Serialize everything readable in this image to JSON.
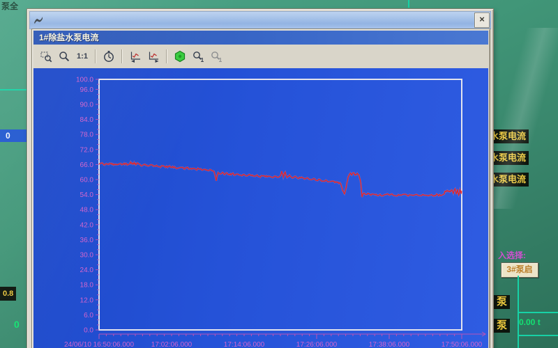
{
  "desktop": {
    "top_left_partial_label": "泵全",
    "left_list_value": "0",
    "left_bottom_value": "0.8",
    "left_bottom_zero": "0",
    "right_panel": {
      "labels": [
        "水泵电流",
        "水泵电流",
        "水泵电流"
      ],
      "prompt": "入选择:",
      "pump_button": "3#泵启",
      "pump_label_1": "泵",
      "pump_label_2": "泵",
      "flow_value": "0.00 t"
    }
  },
  "outer_window": {
    "title": "",
    "close_glyph": "×"
  },
  "trend_window": {
    "title": "1#除盐水泵电流",
    "toolbar": {
      "items": [
        {
          "type": "icon",
          "name": "zoom-area-icon",
          "glyph": "zoomrect"
        },
        {
          "type": "icon",
          "name": "zoom-icon",
          "glyph": "magnifier"
        },
        {
          "type": "text",
          "name": "one-to-one-button",
          "label": "1:1"
        },
        {
          "type": "sep"
        },
        {
          "type": "icon",
          "name": "stopwatch-icon",
          "glyph": "clock"
        },
        {
          "type": "sep"
        },
        {
          "type": "icon",
          "name": "scroll-left-icon",
          "glyph": "chartleft"
        },
        {
          "type": "icon",
          "name": "scroll-right-icon",
          "glyph": "chartright"
        },
        {
          "type": "sep"
        },
        {
          "type": "icon",
          "name": "run-icon",
          "glyph": "greenhex"
        },
        {
          "type": "icon",
          "name": "find-first-icon",
          "glyph": "mag1"
        },
        {
          "type": "icon",
          "name": "find-next-icon",
          "glyph": "mag1",
          "faded": true
        }
      ]
    }
  },
  "chart_data": {
    "type": "line",
    "title": "1#除盐水泵电流",
    "grid": false,
    "legend": false,
    "plot_bg": "#2150d4",
    "border_color": "#e3e4ee",
    "axis_color": "#d263cc",
    "tick_color": "#b853b8",
    "ylim": [
      0,
      100
    ],
    "y_tick_values": [
      0,
      6,
      12,
      18,
      24,
      30,
      36,
      42,
      48,
      54,
      60,
      66,
      72,
      78,
      84,
      90,
      96,
      100
    ],
    "y_tick_labels": [
      "0.0",
      "6.0",
      "12.0",
      "18.0",
      "24.0",
      "30.0",
      "36.0",
      "42.0",
      "48.0",
      "54.0",
      "60.0",
      "66.0",
      "72.0",
      "78.0",
      "84.0",
      "90.0",
      "96.0",
      "100.0"
    ],
    "x_range_minutes": [
      0,
      60
    ],
    "x_ticks": [
      {
        "minute": 0,
        "label": "24/06/10  16:50:06.000"
      },
      {
        "minute": 12,
        "label": "17:02:06.000"
      },
      {
        "minute": 24,
        "label": "17:14:06.000"
      },
      {
        "minute": 36,
        "label": "17:26:06.000"
      },
      {
        "minute": 48,
        "label": "17:38:06.000"
      },
      {
        "minute": 60,
        "label": "17:50:06.000"
      }
    ],
    "series": [
      {
        "name": "1#除盐水泵电流",
        "color": "#ea1f1f",
        "points": [
          [
            0,
            66.2
          ],
          [
            0.4,
            66.6
          ],
          [
            0.8,
            65.9
          ],
          [
            1.2,
            66.4
          ],
          [
            1.6,
            66.0
          ],
          [
            2,
            66.5
          ],
          [
            2.4,
            65.8
          ],
          [
            2.8,
            66.2
          ],
          [
            3.2,
            66.0
          ],
          [
            3.6,
            66.4
          ],
          [
            4,
            66.1
          ],
          [
            4.4,
            66.5
          ],
          [
            4.8,
            66.0
          ],
          [
            5.2,
            67.0
          ],
          [
            5.5,
            66.2
          ],
          [
            5.8,
            66.8
          ],
          [
            6.1,
            65.9
          ],
          [
            6.4,
            66.6
          ],
          [
            6.8,
            66.0
          ],
          [
            7.2,
            65.7
          ],
          [
            7.6,
            66.1
          ],
          [
            8,
            65.5
          ],
          [
            8.5,
            65.9
          ],
          [
            9,
            65.3
          ],
          [
            9.5,
            65.7
          ],
          [
            10,
            65.1
          ],
          [
            10.5,
            65.5
          ],
          [
            11,
            64.9
          ],
          [
            11.5,
            65.3
          ],
          [
            12,
            64.8
          ],
          [
            12.5,
            65.1
          ],
          [
            13,
            64.6
          ],
          [
            13.5,
            64.9
          ],
          [
            14,
            64.4
          ],
          [
            14.5,
            64.7
          ],
          [
            15,
            64.2
          ],
          [
            15.5,
            64.5
          ],
          [
            16,
            64.0
          ],
          [
            16.5,
            64.3
          ],
          [
            17,
            63.8
          ],
          [
            17.5,
            64.1
          ],
          [
            18,
            63.6
          ],
          [
            18.5,
            63.9
          ],
          [
            19,
            63.3
          ],
          [
            19.4,
            59.5
          ],
          [
            19.7,
            62.8
          ],
          [
            20,
            62.2
          ],
          [
            20.4,
            62.9
          ],
          [
            20.8,
            62.0
          ],
          [
            21.2,
            62.6
          ],
          [
            21.6,
            61.9
          ],
          [
            22,
            62.4
          ],
          [
            22.5,
            61.8
          ],
          [
            23,
            62.2
          ],
          [
            23.5,
            61.7
          ],
          [
            24,
            62.0
          ],
          [
            24.5,
            61.5
          ],
          [
            25,
            61.9
          ],
          [
            25.5,
            61.4
          ],
          [
            26,
            61.7
          ],
          [
            26.5,
            61.2
          ],
          [
            27,
            61.5
          ],
          [
            27.5,
            61.1
          ],
          [
            28,
            61.4
          ],
          [
            28.5,
            61.0
          ],
          [
            29,
            61.3
          ],
          [
            29.5,
            60.9
          ],
          [
            30,
            61.5
          ],
          [
            30.2,
            63.4
          ],
          [
            30.5,
            61.0
          ],
          [
            30.8,
            63.0
          ],
          [
            31.1,
            60.8
          ],
          [
            31.5,
            61.8
          ],
          [
            32,
            60.6
          ],
          [
            32.5,
            61.3
          ],
          [
            33,
            60.4
          ],
          [
            33.5,
            61.0
          ],
          [
            34,
            60.2
          ],
          [
            34.5,
            60.7
          ],
          [
            35,
            60.0
          ],
          [
            35.5,
            60.4
          ],
          [
            36,
            59.7
          ],
          [
            36.5,
            60.1
          ],
          [
            37,
            59.4
          ],
          [
            37.5,
            59.8
          ],
          [
            38,
            59.1
          ],
          [
            38.5,
            59.4
          ],
          [
            39,
            58.8
          ],
          [
            39.5,
            59.0
          ],
          [
            40,
            58.2
          ],
          [
            40.3,
            55.5
          ],
          [
            40.6,
            54.3
          ],
          [
            40.9,
            57.0
          ],
          [
            41.2,
            61.0
          ],
          [
            41.5,
            62.4
          ],
          [
            41.8,
            61.8
          ],
          [
            42.1,
            62.7
          ],
          [
            42.4,
            62.0
          ],
          [
            42.7,
            62.5
          ],
          [
            43,
            61.6
          ],
          [
            43.3,
            58.5
          ],
          [
            43.5,
            53.0
          ],
          [
            43.8,
            54.6
          ],
          [
            44.2,
            54.0
          ],
          [
            44.6,
            54.4
          ],
          [
            45,
            53.8
          ],
          [
            45.5,
            54.2
          ],
          [
            46,
            53.7
          ],
          [
            46.5,
            54.1
          ],
          [
            47,
            53.6
          ],
          [
            47.5,
            54.0
          ],
          [
            48,
            53.8
          ],
          [
            48.5,
            54.2
          ],
          [
            49,
            53.6
          ],
          [
            49.5,
            54.0
          ],
          [
            50,
            53.8
          ],
          [
            50.5,
            54.1
          ],
          [
            51,
            53.6
          ],
          [
            51.5,
            53.9
          ],
          [
            52,
            53.7
          ],
          [
            52.5,
            54.1
          ],
          [
            53,
            53.6
          ],
          [
            53.5,
            54.0
          ],
          [
            54,
            53.8
          ],
          [
            54.5,
            53.5
          ],
          [
            55,
            54.0
          ],
          [
            55.5,
            53.7
          ],
          [
            56,
            54.0
          ],
          [
            56.5,
            53.6
          ],
          [
            57,
            54.1
          ],
          [
            57.3,
            55.4
          ],
          [
            57.6,
            55.7
          ],
          [
            58,
            55.1
          ],
          [
            58.3,
            55.9
          ],
          [
            58.6,
            54.5
          ],
          [
            58.9,
            56.3
          ],
          [
            59.1,
            54.2
          ],
          [
            59.3,
            56.1
          ],
          [
            59.5,
            53.8
          ],
          [
            59.7,
            56.0
          ],
          [
            59.9,
            54.3
          ],
          [
            60,
            55.2
          ]
        ]
      }
    ]
  }
}
